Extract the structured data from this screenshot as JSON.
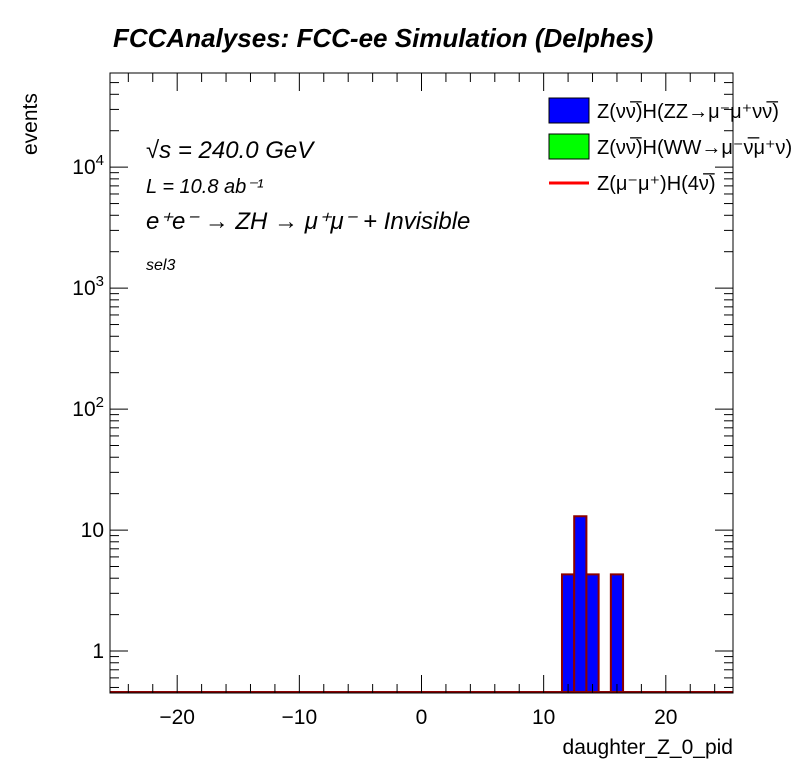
{
  "chart_data": {
    "type": "bar",
    "title": "FCCAnalyses: FCC-ee Simulation (Delphes)",
    "xlabel": "daughter_Z_0_pid",
    "ylabel": "events",
    "xlim": [
      -25.5,
      25.5
    ],
    "ylim": [
      0.45,
      60000
    ],
    "yscale": "log",
    "x_ticks": [
      -20,
      -10,
      0,
      10,
      20
    ],
    "x_tick_labels": [
      "−20",
      "−10",
      "0",
      "10",
      "20"
    ],
    "y_ticks": [
      1,
      10,
      100,
      1000,
      10000
    ],
    "y_tick_labels": [
      "1",
      "10",
      "10^2",
      "10^3",
      "10^4"
    ],
    "series": [
      {
        "name": "Z(νν̅)H(ZZ→μ⁻μ⁺νν̅)",
        "color": "#0000ff",
        "style": "filled",
        "bins": [
          {
            "low": 11.5,
            "high": 12.5,
            "value": 4.3
          },
          {
            "low": 12.5,
            "high": 13.5,
            "value": 13.0
          },
          {
            "low": 13.5,
            "high": 14.5,
            "value": 4.3
          },
          {
            "low": 15.5,
            "high": 16.5,
            "value": 4.3
          }
        ]
      },
      {
        "name": "Z(νν̅)H(WW→μ⁻ν̅μ⁺ν)",
        "color": "#00ff00",
        "style": "filled",
        "bins": []
      },
      {
        "name": "Z(μ⁻μ⁺)H(4ν̅)",
        "color": "#ff0000",
        "style": "line",
        "bins": []
      }
    ],
    "legend_position": "top-right",
    "annotations": {
      "sqrt_s": "√s = 240.0 GeV",
      "lumi": "L = 10.8 ab⁻¹",
      "process": "e⁺e⁻ → ZH → μ⁺μ⁻ + Invisible",
      "selection": "sel3"
    }
  }
}
